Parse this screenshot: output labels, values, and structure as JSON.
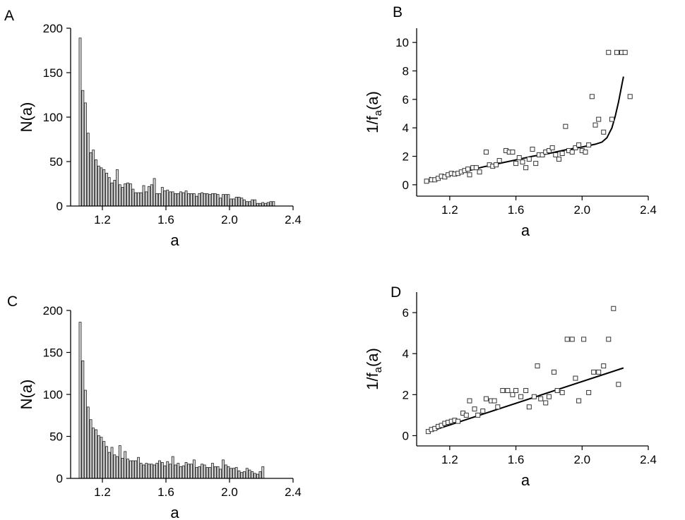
{
  "chart_data": [
    {
      "panel": "A",
      "type": "bar",
      "xlabel": "a",
      "ylabel": "N(a)",
      "xticks": [
        1.2,
        1.6,
        2.0,
        2.4
      ],
      "yticks": [
        0,
        50,
        100,
        150,
        200
      ],
      "xlim": [
        1.0,
        2.4
      ],
      "ylim": [
        0,
        200
      ],
      "bar_width": 0.0167,
      "x": [
        1.06,
        1.077,
        1.093,
        1.11,
        1.127,
        1.143,
        1.16,
        1.177,
        1.193,
        1.21,
        1.227,
        1.243,
        1.26,
        1.277,
        1.293,
        1.31,
        1.327,
        1.343,
        1.36,
        1.377,
        1.393,
        1.41,
        1.427,
        1.443,
        1.46,
        1.477,
        1.493,
        1.51,
        1.527,
        1.543,
        1.56,
        1.577,
        1.593,
        1.61,
        1.627,
        1.643,
        1.66,
        1.677,
        1.693,
        1.71,
        1.727,
        1.743,
        1.76,
        1.777,
        1.793,
        1.81,
        1.827,
        1.843,
        1.86,
        1.877,
        1.893,
        1.91,
        1.927,
        1.943,
        1.96,
        1.977,
        1.993,
        2.01,
        2.027,
        2.043,
        2.06,
        2.077,
        2.093,
        2.11,
        2.127,
        2.143,
        2.16,
        2.177,
        2.193,
        2.21,
        2.227,
        2.243,
        2.26,
        2.277
      ],
      "values": [
        189,
        130,
        116,
        82,
        60,
        63,
        52,
        45,
        43,
        41,
        37,
        32,
        26,
        29,
        41,
        24,
        21,
        25,
        26,
        25,
        19,
        15,
        15,
        15,
        23,
        16,
        22,
        24,
        31,
        14,
        14,
        21,
        17,
        18,
        16,
        16,
        14,
        14,
        16,
        15,
        17,
        14,
        14,
        14,
        11,
        14,
        15,
        14,
        14,
        13,
        14,
        14,
        13,
        9,
        13,
        13,
        13,
        8,
        8,
        10,
        10,
        9,
        7,
        5,
        5,
        7,
        7,
        3,
        3,
        4,
        3,
        4,
        5,
        5
      ]
    },
    {
      "panel": "B",
      "type": "scatter",
      "xlabel": "a",
      "ylabel_main": "1/f",
      "ylabel_sub": "a",
      "ylabel_end": "(a)",
      "xticks": [
        1.2,
        1.6,
        2.0,
        2.4
      ],
      "yticks": [
        0,
        2,
        4,
        6,
        8,
        10
      ],
      "xlim": [
        1.0,
        2.4
      ],
      "ylim": [
        -0.8,
        11
      ],
      "points": [
        [
          1.06,
          0.25
        ],
        [
          1.09,
          0.35
        ],
        [
          1.11,
          0.35
        ],
        [
          1.13,
          0.45
        ],
        [
          1.15,
          0.6
        ],
        [
          1.17,
          0.55
        ],
        [
          1.19,
          0.7
        ],
        [
          1.21,
          0.8
        ],
        [
          1.23,
          0.75
        ],
        [
          1.25,
          0.8
        ],
        [
          1.27,
          0.9
        ],
        [
          1.29,
          1.0
        ],
        [
          1.31,
          1.1
        ],
        [
          1.32,
          0.7
        ],
        [
          1.34,
          1.2
        ],
        [
          1.36,
          1.2
        ],
        [
          1.38,
          0.9
        ],
        [
          1.42,
          2.3
        ],
        [
          1.44,
          1.4
        ],
        [
          1.46,
          1.3
        ],
        [
          1.48,
          1.4
        ],
        [
          1.5,
          1.7
        ],
        [
          1.54,
          2.4
        ],
        [
          1.56,
          2.3
        ],
        [
          1.58,
          2.3
        ],
        [
          1.6,
          1.5
        ],
        [
          1.62,
          1.9
        ],
        [
          1.64,
          1.6
        ],
        [
          1.66,
          1.2
        ],
        [
          1.68,
          1.8
        ],
        [
          1.7,
          2.5
        ],
        [
          1.72,
          1.5
        ],
        [
          1.74,
          2.1
        ],
        [
          1.76,
          2.1
        ],
        [
          1.78,
          2.3
        ],
        [
          1.8,
          2.4
        ],
        [
          1.82,
          2.6
        ],
        [
          1.84,
          2.1
        ],
        [
          1.86,
          1.8
        ],
        [
          1.88,
          2.2
        ],
        [
          1.9,
          4.1
        ],
        [
          1.92,
          2.4
        ],
        [
          1.94,
          2.3
        ],
        [
          1.96,
          2.6
        ],
        [
          1.98,
          2.8
        ],
        [
          2.0,
          2.4
        ],
        [
          2.02,
          2.3
        ],
        [
          2.04,
          2.8
        ],
        [
          2.06,
          6.2
        ],
        [
          2.08,
          4.2
        ],
        [
          2.1,
          4.6
        ],
        [
          2.13,
          3.7
        ],
        [
          2.16,
          9.3
        ],
        [
          2.18,
          4.6
        ],
        [
          2.21,
          9.3
        ],
        [
          2.24,
          9.3
        ],
        [
          2.26,
          9.3
        ],
        [
          2.29,
          6.2
        ]
      ],
      "curve": [
        [
          1.08,
          0.55
        ],
        [
          1.085,
          0.3
        ],
        [
          1.1,
          0.35
        ],
        [
          1.2,
          0.65
        ],
        [
          1.3,
          0.95
        ],
        [
          1.4,
          1.25
        ],
        [
          1.5,
          1.5
        ],
        [
          1.6,
          1.75
        ],
        [
          1.7,
          2.0
        ],
        [
          1.8,
          2.2
        ],
        [
          1.9,
          2.45
        ],
        [
          2.0,
          2.65
        ],
        [
          2.08,
          2.85
        ],
        [
          2.12,
          3.0
        ],
        [
          2.15,
          3.3
        ],
        [
          2.18,
          4.0
        ],
        [
          2.2,
          4.8
        ],
        [
          2.22,
          5.8
        ],
        [
          2.24,
          7.0
        ],
        [
          2.25,
          7.6
        ]
      ]
    },
    {
      "panel": "C",
      "type": "bar",
      "xlabel": "a",
      "ylabel": "N(a)",
      "xticks": [
        1.2,
        1.6,
        2.0,
        2.4
      ],
      "yticks": [
        0,
        50,
        100,
        150,
        200
      ],
      "xlim": [
        1.0,
        2.4
      ],
      "ylim": [
        0,
        200
      ],
      "bar_width": 0.0167,
      "x": [
        1.06,
        1.077,
        1.093,
        1.11,
        1.127,
        1.143,
        1.16,
        1.177,
        1.193,
        1.21,
        1.227,
        1.243,
        1.26,
        1.277,
        1.293,
        1.31,
        1.327,
        1.343,
        1.36,
        1.377,
        1.393,
        1.41,
        1.427,
        1.443,
        1.46,
        1.477,
        1.493,
        1.51,
        1.527,
        1.543,
        1.56,
        1.577,
        1.593,
        1.61,
        1.627,
        1.643,
        1.66,
        1.677,
        1.693,
        1.71,
        1.727,
        1.743,
        1.76,
        1.777,
        1.793,
        1.81,
        1.827,
        1.843,
        1.86,
        1.877,
        1.893,
        1.91,
        1.927,
        1.943,
        1.96,
        1.977,
        1.993,
        2.01,
        2.027,
        2.043,
        2.06,
        2.077,
        2.093,
        2.11,
        2.127,
        2.143,
        2.16,
        2.177,
        2.193,
        2.21
      ],
      "values": [
        186,
        140,
        105,
        85,
        70,
        60,
        58,
        51,
        49,
        44,
        38,
        31,
        37,
        28,
        26,
        39,
        24,
        32,
        23,
        21,
        21,
        21,
        25,
        18,
        16,
        18,
        17,
        17,
        16,
        18,
        21,
        19,
        15,
        20,
        17,
        26,
        16,
        18,
        14,
        15,
        19,
        17,
        17,
        22,
        13,
        14,
        17,
        16,
        13,
        13,
        18,
        14,
        14,
        11,
        22,
        16,
        14,
        12,
        12,
        13,
        9,
        7,
        8,
        12,
        10,
        8,
        6,
        5,
        8,
        14
      ]
    },
    {
      "panel": "D",
      "type": "scatter",
      "xlabel": "a",
      "ylabel_main": "1/f",
      "ylabel_sub": "a",
      "ylabel_end": "(a)",
      "xticks": [
        1.2,
        1.6,
        2.0,
        2.4
      ],
      "yticks": [
        0,
        2,
        4,
        6
      ],
      "xlim": [
        1.0,
        2.4
      ],
      "ylim": [
        -0.5,
        7
      ],
      "points": [
        [
          1.07,
          0.2
        ],
        [
          1.09,
          0.3
        ],
        [
          1.11,
          0.35
        ],
        [
          1.13,
          0.45
        ],
        [
          1.15,
          0.5
        ],
        [
          1.17,
          0.6
        ],
        [
          1.19,
          0.65
        ],
        [
          1.21,
          0.7
        ],
        [
          1.23,
          0.75
        ],
        [
          1.25,
          0.7
        ],
        [
          1.28,
          1.1
        ],
        [
          1.3,
          1.0
        ],
        [
          1.32,
          1.7
        ],
        [
          1.35,
          1.3
        ],
        [
          1.37,
          1.0
        ],
        [
          1.4,
          1.2
        ],
        [
          1.42,
          1.8
        ],
        [
          1.45,
          1.7
        ],
        [
          1.47,
          1.7
        ],
        [
          1.49,
          1.4
        ],
        [
          1.52,
          2.2
        ],
        [
          1.55,
          2.2
        ],
        [
          1.58,
          2.0
        ],
        [
          1.6,
          2.2
        ],
        [
          1.63,
          1.9
        ],
        [
          1.66,
          2.2
        ],
        [
          1.68,
          1.4
        ],
        [
          1.71,
          1.9
        ],
        [
          1.73,
          3.4
        ],
        [
          1.75,
          1.8
        ],
        [
          1.78,
          1.6
        ],
        [
          1.8,
          1.9
        ],
        [
          1.83,
          3.1
        ],
        [
          1.85,
          2.2
        ],
        [
          1.88,
          2.1
        ],
        [
          1.91,
          4.7
        ],
        [
          1.94,
          4.7
        ],
        [
          1.96,
          2.8
        ],
        [
          1.98,
          1.7
        ],
        [
          2.01,
          4.7
        ],
        [
          2.04,
          2.1
        ],
        [
          2.07,
          3.1
        ],
        [
          2.1,
          3.1
        ],
        [
          2.13,
          3.4
        ],
        [
          2.16,
          4.7
        ],
        [
          2.19,
          6.2
        ],
        [
          2.22,
          2.5
        ]
      ],
      "curve": [
        [
          1.06,
          0.15
        ],
        [
          2.25,
          3.3
        ]
      ]
    }
  ]
}
